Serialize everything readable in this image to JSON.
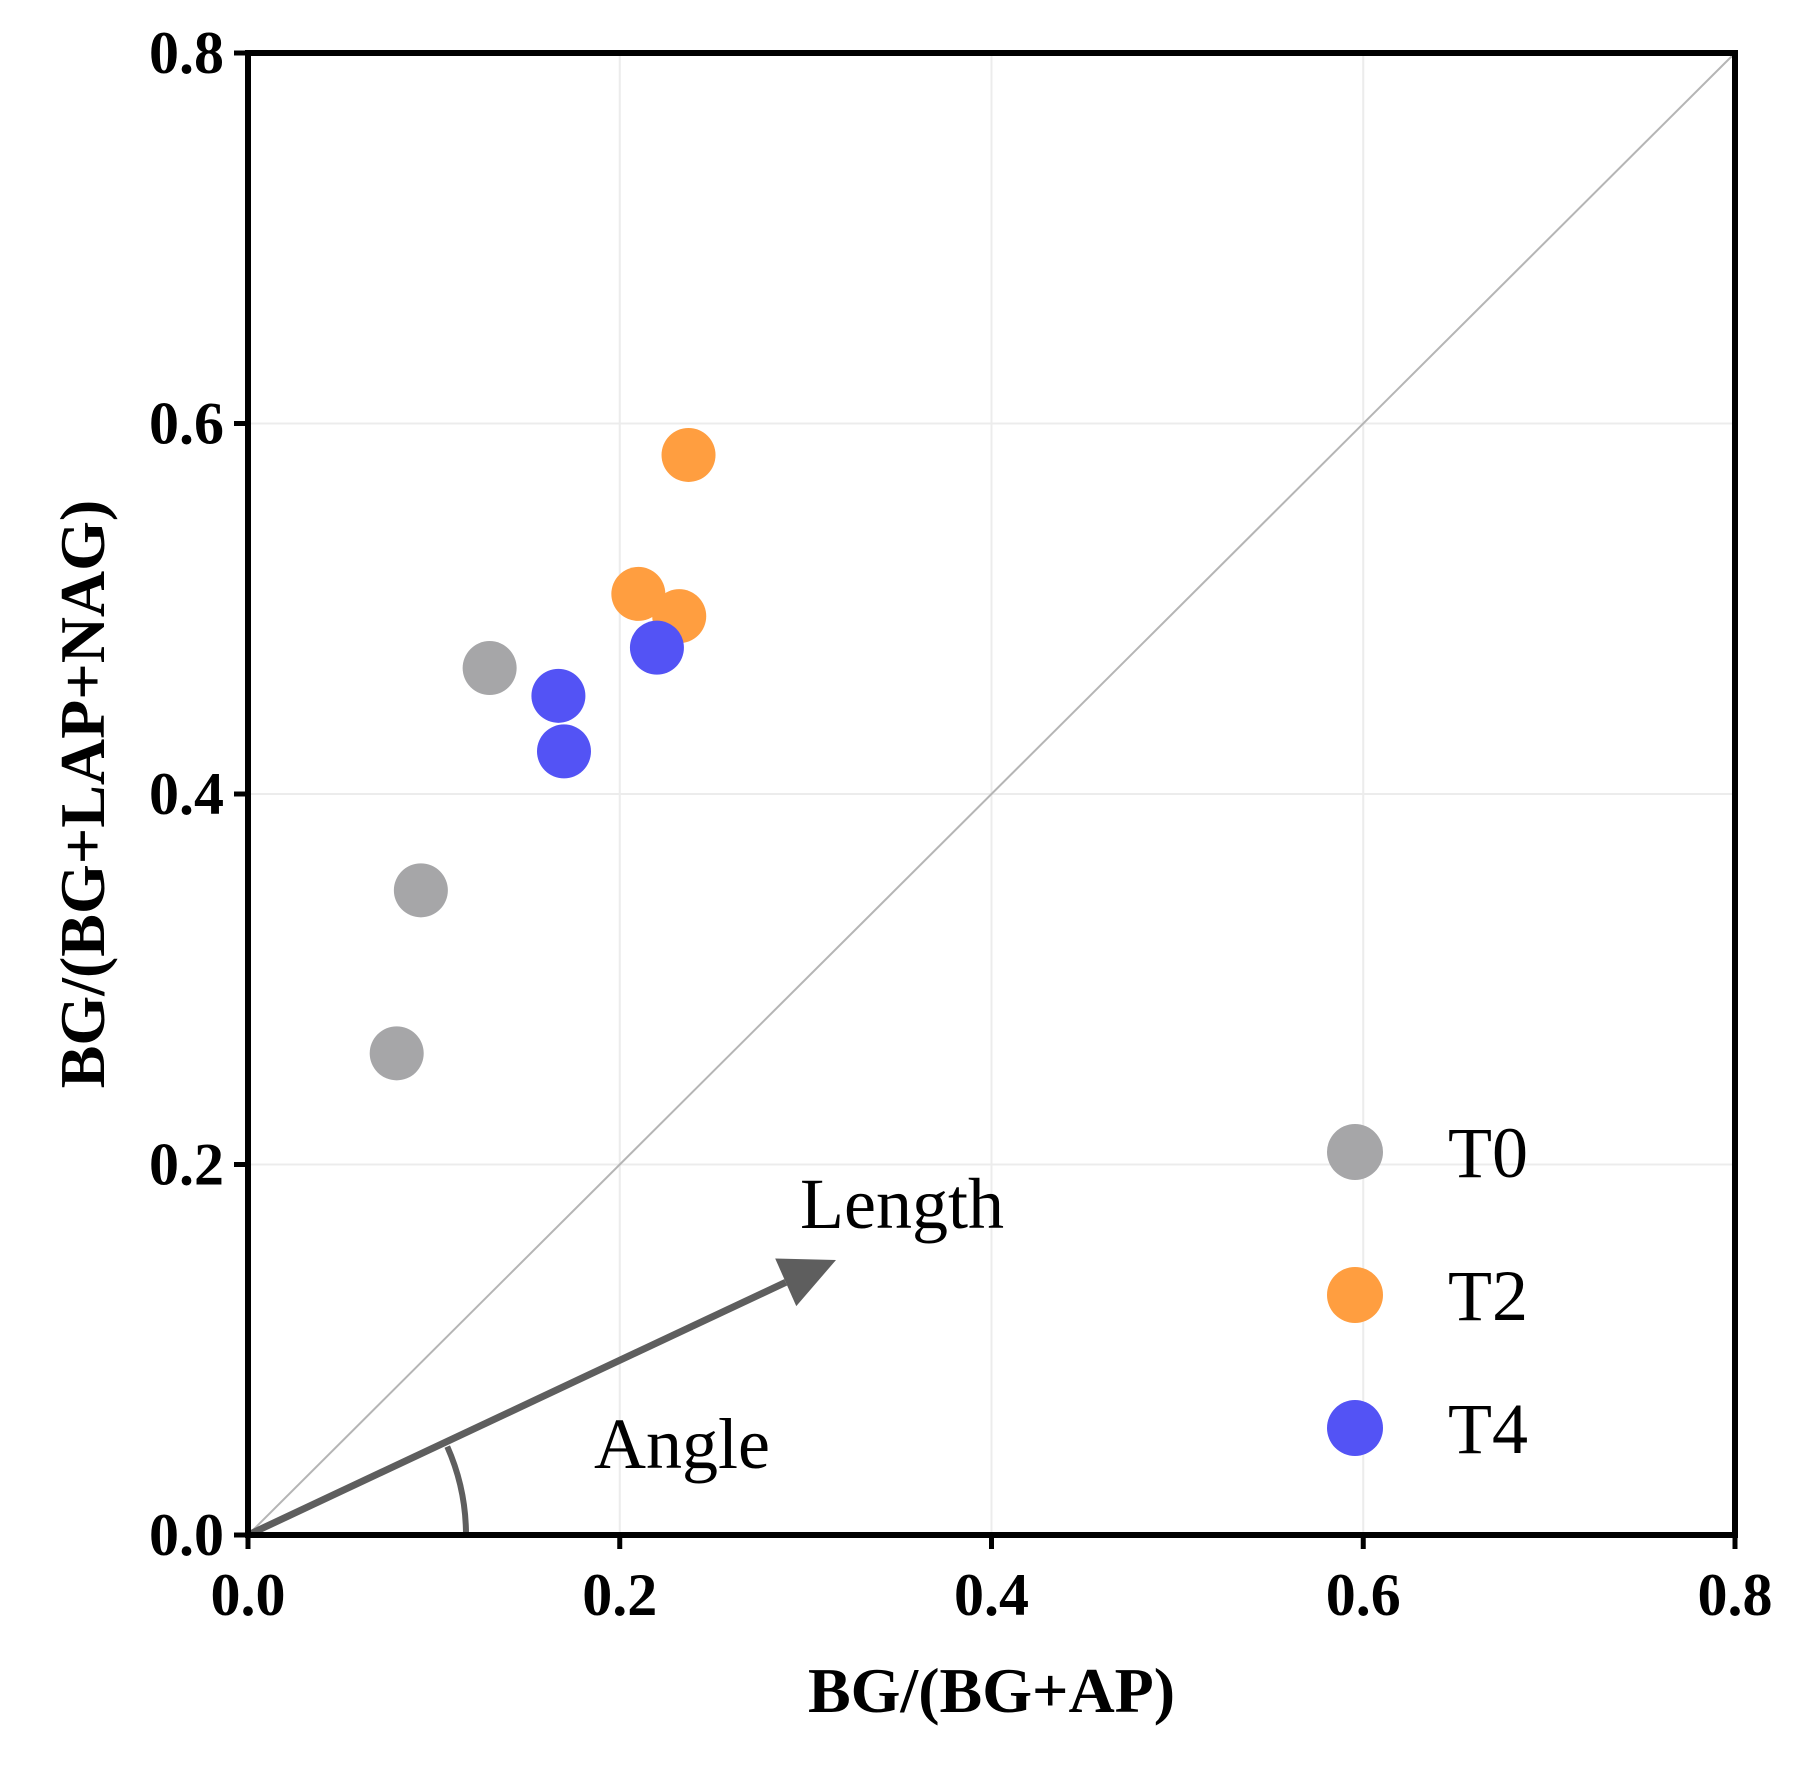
{
  "chart_data": {
    "type": "scatter",
    "title": "",
    "xlabel": "BG/(BG+AP)",
    "ylabel": "BG/(BG+LAP+NAG)",
    "xlim": [
      0,
      0.8
    ],
    "ylim": [
      0,
      0.8
    ],
    "xticks": [
      "0.0",
      "0.2",
      "0.4",
      "0.6",
      "0.8"
    ],
    "yticks": [
      "0.0",
      "0.2",
      "0.4",
      "0.6",
      "0.8"
    ],
    "grid": true,
    "legend_position": "bottom-right",
    "reference_line": "y = x",
    "annotations": [
      "Length",
      "Angle"
    ],
    "series": [
      {
        "name": "T0",
        "color": "#a6a6a8",
        "points": [
          {
            "x": 0.08,
            "y": 0.26
          },
          {
            "x": 0.093,
            "y": 0.348
          },
          {
            "x": 0.13,
            "y": 0.468
          }
        ]
      },
      {
        "name": "T2",
        "color": "#ff9e40",
        "points": [
          {
            "x": 0.237,
            "y": 0.583
          },
          {
            "x": 0.21,
            "y": 0.508
          },
          {
            "x": 0.232,
            "y": 0.496
          }
        ]
      },
      {
        "name": "T4",
        "color": "#5353f5",
        "points": [
          {
            "x": 0.167,
            "y": 0.453
          },
          {
            "x": 0.17,
            "y": 0.423
          },
          {
            "x": 0.22,
            "y": 0.479
          }
        ]
      }
    ]
  }
}
